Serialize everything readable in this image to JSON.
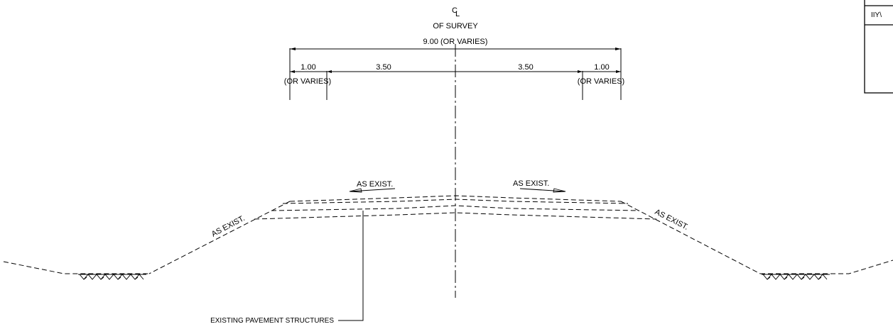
{
  "centerline": {
    "symbol_c": "C",
    "symbol_l": "L",
    "label": "OF SURVEY"
  },
  "dimensions": {
    "overall": "9.00 (OR VARIES)",
    "left_shoulder": "1.00",
    "left_shoulder_note": "(OR VARIES)",
    "left_lane": "3.50",
    "right_lane": "3.50",
    "right_shoulder": "1.00",
    "right_shoulder_note": "(OR VARIES)"
  },
  "notes": {
    "left_lane_slope": "AS EXIST.",
    "right_lane_slope": "AS EXIST.",
    "left_side_slope": "AS EXIST.",
    "right_side_slope": "AS EXIST.",
    "pavement_callout": "EXISTING PAVEMENT STRUCTURES"
  },
  "title_block": {
    "fragment": "ΙΙΥ\\"
  }
}
